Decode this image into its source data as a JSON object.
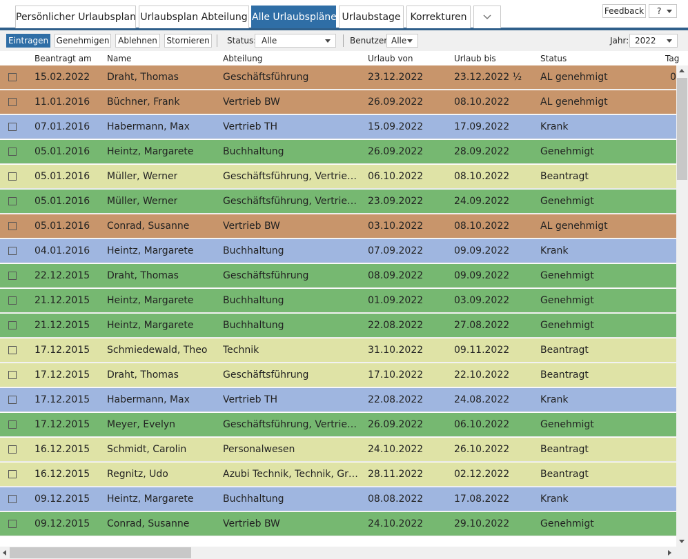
{
  "tabs": [
    "Persönlicher Urlaubsplan",
    "Urlaubsplan Abteilung",
    "Alle Urlaubspläne",
    "Urlaubstage",
    "Korrekturen"
  ],
  "top_buttons": {
    "feedback": "Feedback",
    "help": "?"
  },
  "toolbar": {
    "buttons": [
      "Eintragen",
      "Genehmigen",
      "Ablehnen",
      "Stornieren"
    ],
    "status_label": "Status:",
    "status_value": "Alle",
    "user_label": "Benutzer",
    "user_value": "Alle",
    "year_label": "Jahr:",
    "year_value": "2022"
  },
  "table": {
    "headers": [
      "Beantragt am",
      "Name",
      "Abteilung",
      "Urlaub von",
      "Urlaub bis",
      "Status",
      "Tag"
    ],
    "rows": [
      {
        "cells": [
          "15.02.2022",
          "Draht, Thomas",
          "Geschäftsführung",
          "23.12.2022",
          "23.12.2022 ½",
          "AL genehmigt",
          "0"
        ],
        "color": "#c8956b"
      },
      {
        "cells": [
          "11.01.2016",
          "Büchner, Frank",
          "Vertrieb BW",
          "26.09.2022",
          "08.10.2022",
          "AL genehmigt"
        ],
        "color": "#c8956b"
      },
      {
        "cells": [
          "07.01.2016",
          "Habermann, Max",
          "Vertrieb TH",
          "15.09.2022",
          "17.09.2022",
          "Krank"
        ],
        "color": "#9fb6e0"
      },
      {
        "cells": [
          "05.01.2016",
          "Heintz, Margarete",
          "Buchhaltung",
          "26.09.2022",
          "28.09.2022",
          "Genehmigt"
        ],
        "color": "#76b871"
      },
      {
        "cells": [
          "05.01.2016",
          "Müller, Werner",
          "Geschäftsführung, Vertrieb ...",
          "06.10.2022",
          "08.10.2022",
          "Beantragt"
        ],
        "color": "#dfe3a6"
      },
      {
        "cells": [
          "05.01.2016",
          "Müller, Werner",
          "Geschäftsführung, Vertrieb ...",
          "23.09.2022",
          "24.09.2022",
          "Genehmigt"
        ],
        "color": "#76b871"
      },
      {
        "cells": [
          "05.01.2016",
          "Conrad, Susanne",
          "Vertrieb BW",
          "03.10.2022",
          "08.10.2022",
          "AL genehmigt"
        ],
        "color": "#c8956b"
      },
      {
        "cells": [
          "04.01.2016",
          "Heintz, Margarete",
          "Buchhaltung",
          "07.09.2022",
          "09.09.2022",
          "Krank"
        ],
        "color": "#9fb6e0"
      },
      {
        "cells": [
          "22.12.2015",
          "Draht, Thomas",
          "Geschäftsführung",
          "08.09.2022",
          "09.09.2022",
          "Genehmigt"
        ],
        "color": "#76b871"
      },
      {
        "cells": [
          "21.12.2015",
          "Heintz, Margarete",
          "Buchhaltung",
          "01.09.2022",
          "03.09.2022",
          "Genehmigt"
        ],
        "color": "#76b871"
      },
      {
        "cells": [
          "21.12.2015",
          "Heintz, Margarete",
          "Buchhaltung",
          "22.08.2022",
          "27.08.2022",
          "Genehmigt"
        ],
        "color": "#76b871"
      },
      {
        "cells": [
          "17.12.2015",
          "Schmiedewald, Theo",
          "Technik",
          "31.10.2022",
          "09.11.2022",
          "Beantragt"
        ],
        "color": "#dfe3a6"
      },
      {
        "cells": [
          "17.12.2015",
          "Draht, Thomas",
          "Geschäftsführung",
          "17.10.2022",
          "22.10.2022",
          "Beantragt"
        ],
        "color": "#dfe3a6"
      },
      {
        "cells": [
          "17.12.2015",
          "Habermann, Max",
          "Vertrieb TH",
          "22.08.2022",
          "24.08.2022",
          "Krank"
        ],
        "color": "#9fb6e0"
      },
      {
        "cells": [
          "17.12.2015",
          "Meyer, Evelyn",
          "Geschäftsführung, Vertrieb ...",
          "26.09.2022",
          "06.10.2022",
          "Genehmigt"
        ],
        "color": "#76b871"
      },
      {
        "cells": [
          "16.12.2015",
          "Schmidt, Carolin",
          "Personalwesen",
          "24.10.2022",
          "26.10.2022",
          "Beantragt"
        ],
        "color": "#dfe3a6"
      },
      {
        "cells": [
          "16.12.2015",
          "Regnitz, Udo",
          "Azubi Technik, Technik, Gru...",
          "28.11.2022",
          "02.12.2022",
          "Beantragt"
        ],
        "color": "#dfe3a6"
      },
      {
        "cells": [
          "09.12.2015",
          "Heintz, Margarete",
          "Buchhaltung",
          "08.08.2022",
          "17.08.2022",
          "Krank"
        ],
        "color": "#9fb6e0"
      },
      {
        "cells": [
          "09.12.2015",
          "Conrad, Susanne",
          "Vertrieb BW",
          "24.10.2022",
          "29.10.2022",
          "Genehmigt"
        ],
        "color": "#76b871"
      }
    ]
  }
}
